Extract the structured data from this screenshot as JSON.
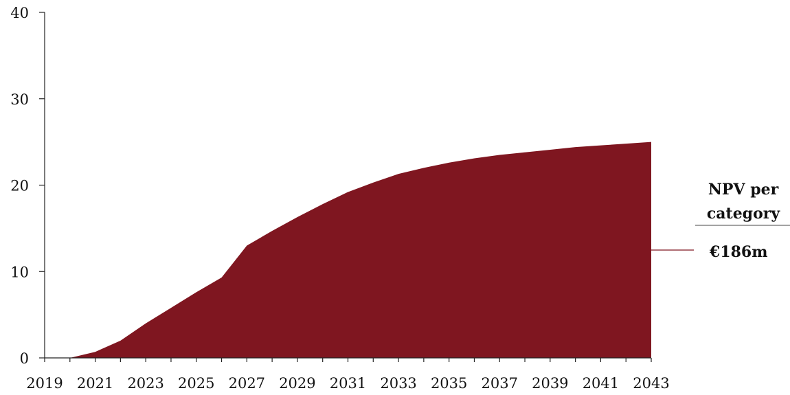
{
  "chart_data": {
    "type": "area",
    "x": [
      2019,
      2020,
      2021,
      2022,
      2023,
      2024,
      2025,
      2026,
      2027,
      2028,
      2029,
      2030,
      2031,
      2032,
      2033,
      2034,
      2035,
      2036,
      2037,
      2038,
      2039,
      2040,
      2041,
      2042,
      2043
    ],
    "series": [
      {
        "values": [
          0,
          0,
          0.7,
          2.0,
          4.0,
          5.8,
          7.6,
          9.3,
          13.0,
          14.7,
          16.3,
          17.8,
          19.2,
          20.3,
          21.3,
          22.0,
          22.6,
          23.1,
          23.5,
          23.8,
          24.1,
          24.4,
          24.6,
          24.8,
          25.0
        ]
      }
    ],
    "ylim": [
      0,
      40
    ],
    "yticks": [
      0,
      10,
      20,
      30,
      40
    ],
    "xtick_labels": [
      "2019",
      "2021",
      "2023",
      "2025",
      "2027",
      "2029",
      "2031",
      "2033",
      "2035",
      "2037",
      "2039",
      "2041",
      "2043"
    ],
    "fill_color": "#7f1620",
    "annotation": {
      "title": "NPV per category",
      "value": "€186m"
    },
    "grid": false,
    "legend": "none"
  }
}
